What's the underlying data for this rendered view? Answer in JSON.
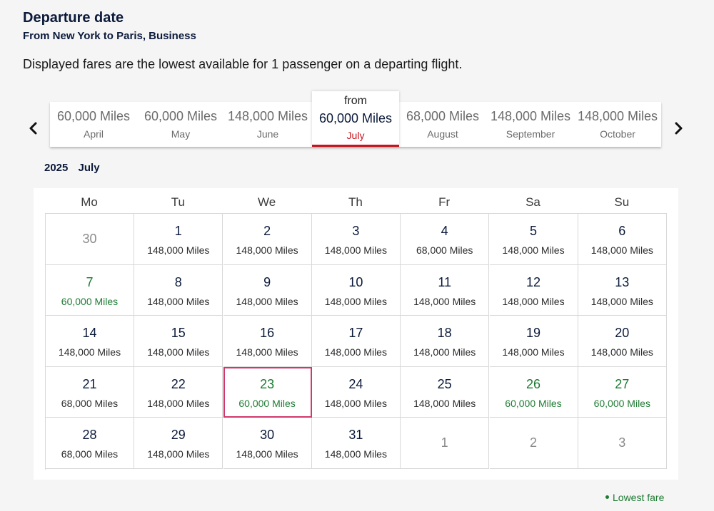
{
  "header": {
    "title": "Departure date",
    "subtitle": "From New York to Paris, Business",
    "info": "Displayed fares are the lowest available for 1 passenger on a departing flight."
  },
  "months": [
    {
      "miles": "60,000 Miles",
      "name": "April"
    },
    {
      "miles": "60,000 Miles",
      "name": "May"
    },
    {
      "miles": "148,000 Miles",
      "name": "June"
    },
    {
      "prefix": "from",
      "miles": "60,000 Miles",
      "name": "July",
      "selected": true
    },
    {
      "miles": "68,000 Miles",
      "name": "August"
    },
    {
      "miles": "148,000 Miles",
      "name": "September"
    },
    {
      "miles": "148,000 Miles",
      "name": "October"
    }
  ],
  "calendar": {
    "year": "2025",
    "month": "July",
    "weekdays": [
      "Mo",
      "Tu",
      "We",
      "Th",
      "Fr",
      "Sa",
      "Su"
    ],
    "weeks": [
      [
        {
          "day": "30",
          "muted": true
        },
        {
          "day": "1",
          "price": "148,000 Miles"
        },
        {
          "day": "2",
          "price": "148,000 Miles"
        },
        {
          "day": "3",
          "price": "148,000 Miles"
        },
        {
          "day": "4",
          "price": "68,000 Miles"
        },
        {
          "day": "5",
          "price": "148,000 Miles"
        },
        {
          "day": "6",
          "price": "148,000 Miles"
        }
      ],
      [
        {
          "day": "7",
          "price": "60,000 Miles",
          "lowest": true
        },
        {
          "day": "8",
          "price": "148,000 Miles"
        },
        {
          "day": "9",
          "price": "148,000 Miles"
        },
        {
          "day": "10",
          "price": "148,000 Miles"
        },
        {
          "day": "11",
          "price": "148,000 Miles"
        },
        {
          "day": "12",
          "price": "148,000 Miles"
        },
        {
          "day": "13",
          "price": "148,000 Miles"
        }
      ],
      [
        {
          "day": "14",
          "price": "148,000 Miles"
        },
        {
          "day": "15",
          "price": "148,000 Miles"
        },
        {
          "day": "16",
          "price": "148,000 Miles"
        },
        {
          "day": "17",
          "price": "148,000 Miles"
        },
        {
          "day": "18",
          "price": "148,000 Miles"
        },
        {
          "day": "19",
          "price": "148,000 Miles"
        },
        {
          "day": "20",
          "price": "148,000 Miles"
        }
      ],
      [
        {
          "day": "21",
          "price": "68,000 Miles"
        },
        {
          "day": "22",
          "price": "148,000 Miles"
        },
        {
          "day": "23",
          "price": "60,000 Miles",
          "lowest": true,
          "selected": true
        },
        {
          "day": "24",
          "price": "148,000 Miles"
        },
        {
          "day": "25",
          "price": "148,000 Miles"
        },
        {
          "day": "26",
          "price": "60,000 Miles",
          "lowest": true
        },
        {
          "day": "27",
          "price": "60,000 Miles",
          "lowest": true
        }
      ],
      [
        {
          "day": "28",
          "price": "68,000 Miles"
        },
        {
          "day": "29",
          "price": "148,000 Miles"
        },
        {
          "day": "30",
          "price": "148,000 Miles"
        },
        {
          "day": "31",
          "price": "148,000 Miles"
        },
        {
          "day": "1",
          "muted": true
        },
        {
          "day": "2",
          "muted": true
        },
        {
          "day": "3",
          "muted": true
        }
      ]
    ]
  },
  "legend": {
    "label": "Lowest fare"
  },
  "colors": {
    "lowest": "#1e7a33",
    "selected_border": "#d0386b",
    "selected_month": "#c4141c",
    "text": "#0b1a3a"
  },
  "icons": {
    "prev": "chevron-left-icon",
    "next": "chevron-right-icon"
  }
}
